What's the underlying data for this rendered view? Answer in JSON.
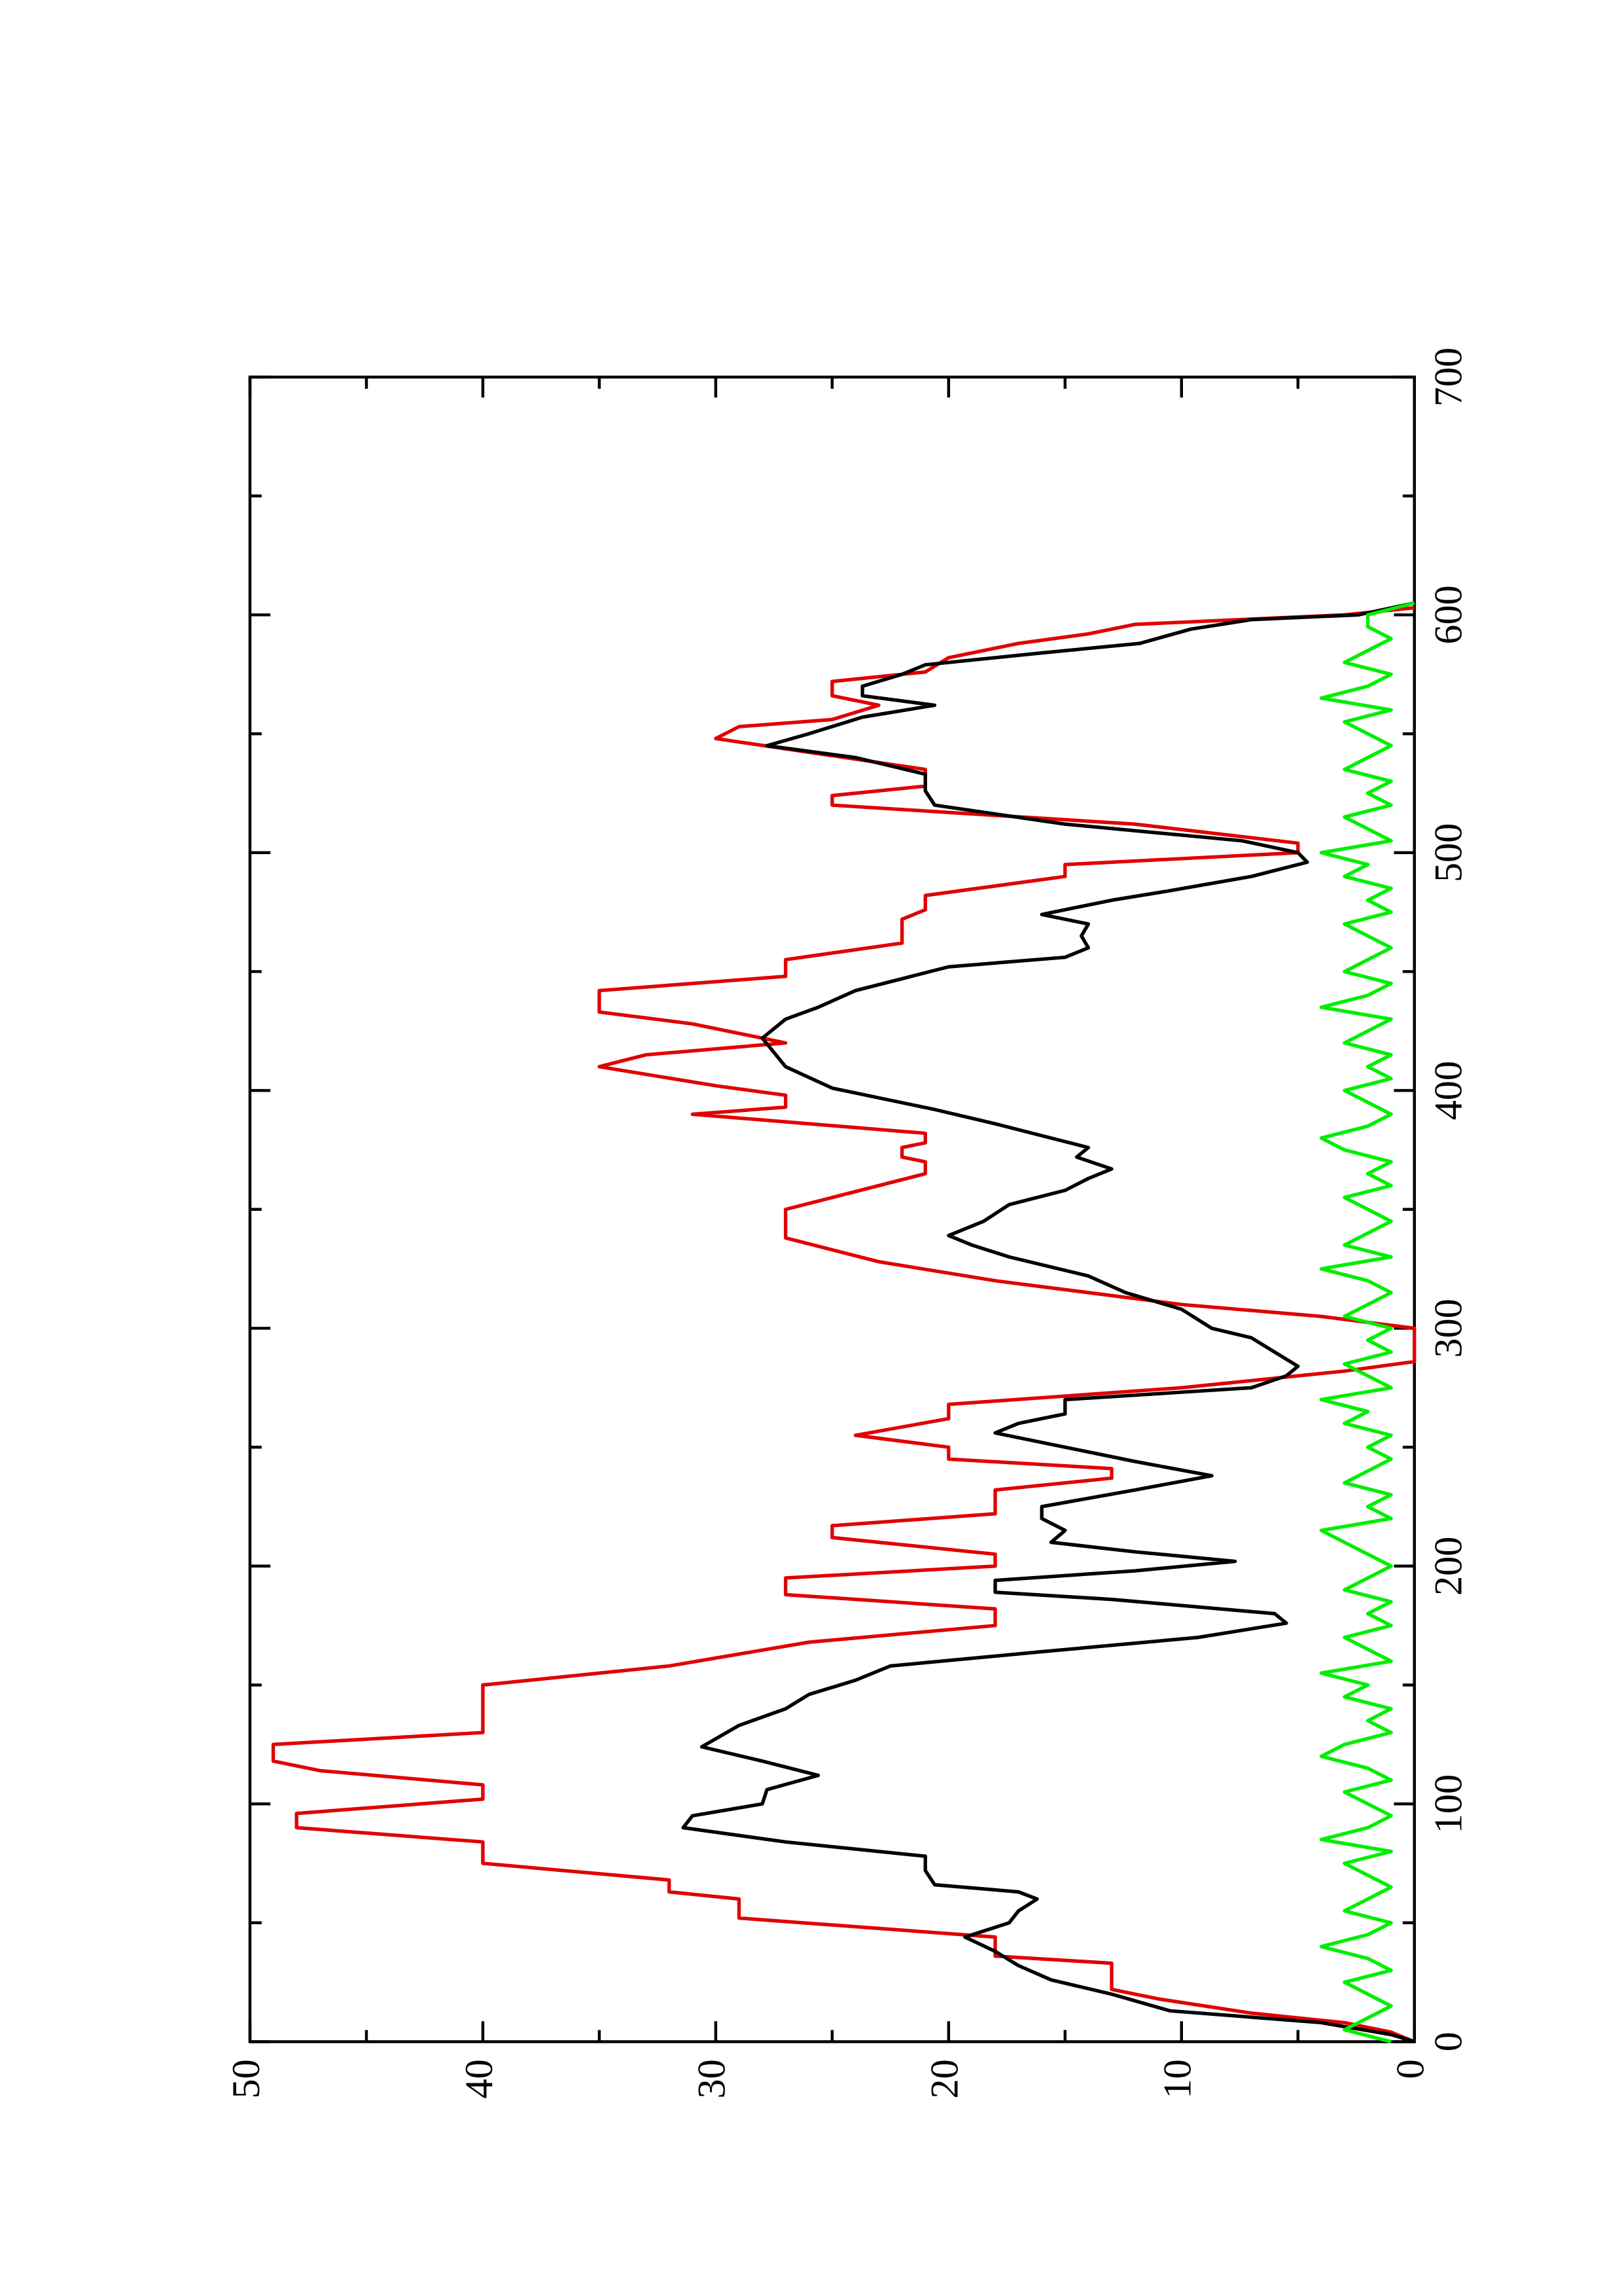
{
  "chart_data": {
    "type": "line",
    "xlim": [
      0,
      700
    ],
    "xticks": [
      0,
      100,
      200,
      300,
      400,
      500,
      600,
      700
    ],
    "ylim": [
      0,
      50
    ],
    "yticks": [
      0,
      10,
      20,
      30,
      40,
      50
    ],
    "grid": false,
    "rotated": true,
    "series": [
      {
        "color": "#e00000",
        "x": [
          0,
          4,
          8,
          12,
          18,
          22,
          33,
          36,
          44,
          52,
          60,
          63,
          68,
          75,
          84,
          90,
          96,
          102,
          108,
          114,
          118,
          125,
          130,
          150,
          158,
          168,
          175,
          182,
          188,
          195,
          200,
          205,
          212,
          217,
          222,
          232,
          237,
          241,
          245,
          250,
          255,
          262,
          268,
          275,
          282,
          286,
          300,
          305,
          310,
          320,
          328,
          333,
          338,
          350,
          355,
          365,
          370,
          372,
          376,
          378,
          382,
          390,
          393,
          398,
          402,
          410,
          415,
          420,
          428,
          433,
          442,
          448,
          455,
          462,
          472,
          476,
          482,
          490,
          495,
          500,
          504,
          512,
          520,
          524,
          528,
          535,
          548,
          553,
          556,
          562,
          566,
          572,
          576,
          582,
          588,
          592,
          596,
          600,
          603
        ],
        "values": [
          0,
          1,
          3,
          7,
          11,
          13,
          13,
          18,
          18,
          29,
          29,
          32,
          32,
          40,
          40,
          48,
          48,
          40,
          40,
          47,
          49,
          49,
          40,
          40,
          32,
          26,
          18,
          18,
          27,
          27,
          18,
          18,
          25,
          25,
          18,
          18,
          13,
          13,
          20,
          20,
          24,
          20,
          20,
          10,
          3,
          0,
          0,
          4,
          10,
          18,
          23,
          25,
          27,
          27,
          25,
          21,
          21,
          22,
          22,
          21,
          21,
          31,
          27,
          27,
          30,
          35,
          33,
          27,
          31,
          35,
          35,
          27,
          27,
          22,
          22,
          21,
          21,
          15,
          15,
          5,
          5,
          12,
          25,
          25,
          21,
          21,
          30,
          29,
          25,
          23,
          25,
          25,
          21,
          20,
          17,
          14,
          12,
          3,
          0
        ]
      },
      {
        "color": "#000000",
        "x": [
          0,
          3,
          8,
          13,
          20,
          26,
          32,
          38,
          44,
          50,
          55,
          60,
          63,
          66,
          72,
          78,
          84,
          90,
          95,
          100,
          106,
          112,
          118,
          124,
          133,
          140,
          146,
          152,
          158,
          164,
          170,
          176,
          180,
          186,
          189,
          194,
          198,
          202,
          206,
          210,
          215,
          220,
          225,
          232,
          238,
          244,
          250,
          256,
          260,
          264,
          270,
          275,
          280,
          284,
          290,
          296,
          300,
          308,
          315,
          322,
          330,
          335,
          339,
          345,
          352,
          358,
          363,
          367,
          372,
          376,
          380,
          386,
          392,
          401,
          410,
          422,
          430,
          435,
          442,
          447,
          452,
          456,
          460,
          465,
          470,
          474,
          480,
          484,
          490,
          496,
          500,
          505,
          512,
          520,
          526,
          533,
          540,
          545,
          550,
          557,
          562,
          566,
          570,
          575,
          579,
          584,
          588,
          594,
          598,
          600,
          605
        ],
        "values": [
          0,
          1,
          4,
          10.5,
          13,
          15.6,
          17,
          18,
          19.3,
          17.4,
          17,
          16.2,
          17,
          20.6,
          21,
          21,
          27,
          31.4,
          31,
          28,
          27.8,
          25.6,
          28,
          30.6,
          29,
          27,
          26,
          24,
          22.5,
          16,
          9.3,
          5.5,
          6,
          13,
          18,
          18,
          12,
          7.7,
          12,
          15.6,
          15,
          16,
          16,
          12,
          8.7,
          12,
          15,
          18,
          17,
          15,
          15,
          7,
          5.5,
          5,
          6,
          7,
          8.7,
          10,
          12.4,
          14,
          17.4,
          19,
          20,
          18.5,
          17.4,
          15,
          14,
          13,
          14.5,
          14,
          15.6,
          18,
          20.6,
          25,
          27,
          28,
          27,
          25.6,
          24,
          22,
          20,
          15,
          14,
          14.3,
          14,
          16,
          13,
          10.5,
          7,
          4.6,
          5,
          7.4,
          15,
          20.6,
          21,
          21,
          24,
          27.8,
          26,
          23.7,
          20.6,
          23.7,
          23.7,
          22,
          21,
          16,
          11.8,
          9.6,
          7,
          2.4,
          0
        ]
      },
      {
        "color": "#00ee00",
        "x": [
          0,
          5,
          10,
          15,
          20,
          25,
          30,
          35,
          40,
          45,
          50,
          55,
          60,
          65,
          70,
          75,
          80,
          85,
          90,
          95,
          100,
          105,
          110,
          115,
          120,
          125,
          130,
          135,
          140,
          145,
          150,
          155,
          160,
          165,
          170,
          175,
          180,
          185,
          190,
          195,
          200,
          205,
          210,
          215,
          220,
          225,
          230,
          235,
          240,
          245,
          250,
          255,
          260,
          265,
          270,
          275,
          280,
          285,
          290,
          295,
          300,
          305,
          310,
          315,
          320,
          325,
          330,
          335,
          340,
          345,
          350,
          355,
          360,
          365,
          370,
          375,
          380,
          385,
          390,
          395,
          400,
          405,
          410,
          415,
          420,
          425,
          430,
          435,
          440,
          445,
          450,
          455,
          460,
          465,
          470,
          475,
          480,
          485,
          490,
          495,
          500,
          505,
          510,
          515,
          520,
          525,
          530,
          535,
          540,
          545,
          550,
          555,
          560,
          565,
          570,
          575,
          580,
          585,
          590,
          595,
          600,
          605
        ],
        "values": [
          1,
          3,
          2,
          1,
          2,
          3,
          1,
          2,
          4,
          2,
          1,
          3,
          2,
          1,
          2,
          3,
          1,
          4,
          2,
          1,
          2,
          3,
          1,
          2,
          4,
          3,
          1,
          2,
          1,
          3,
          2,
          4,
          1,
          2,
          3,
          1,
          2,
          1,
          3,
          2,
          1,
          2,
          3,
          4,
          1,
          2,
          1,
          3,
          2,
          1,
          2,
          1,
          3,
          2,
          4,
          1,
          2,
          3,
          1,
          2,
          1,
          3,
          2,
          1,
          2,
          4,
          1,
          3,
          2,
          1,
          2,
          3,
          1,
          2,
          1,
          3,
          4,
          2,
          1,
          2,
          3,
          1,
          2,
          1,
          3,
          2,
          1,
          4,
          2,
          1,
          3,
          2,
          1,
          2,
          3,
          1,
          2,
          1,
          3,
          2,
          4,
          1,
          2,
          3,
          1,
          2,
          1,
          3,
          2,
          1,
          2,
          3,
          1,
          4,
          2,
          1,
          3,
          2,
          1,
          2,
          2,
          0
        ]
      }
    ]
  }
}
